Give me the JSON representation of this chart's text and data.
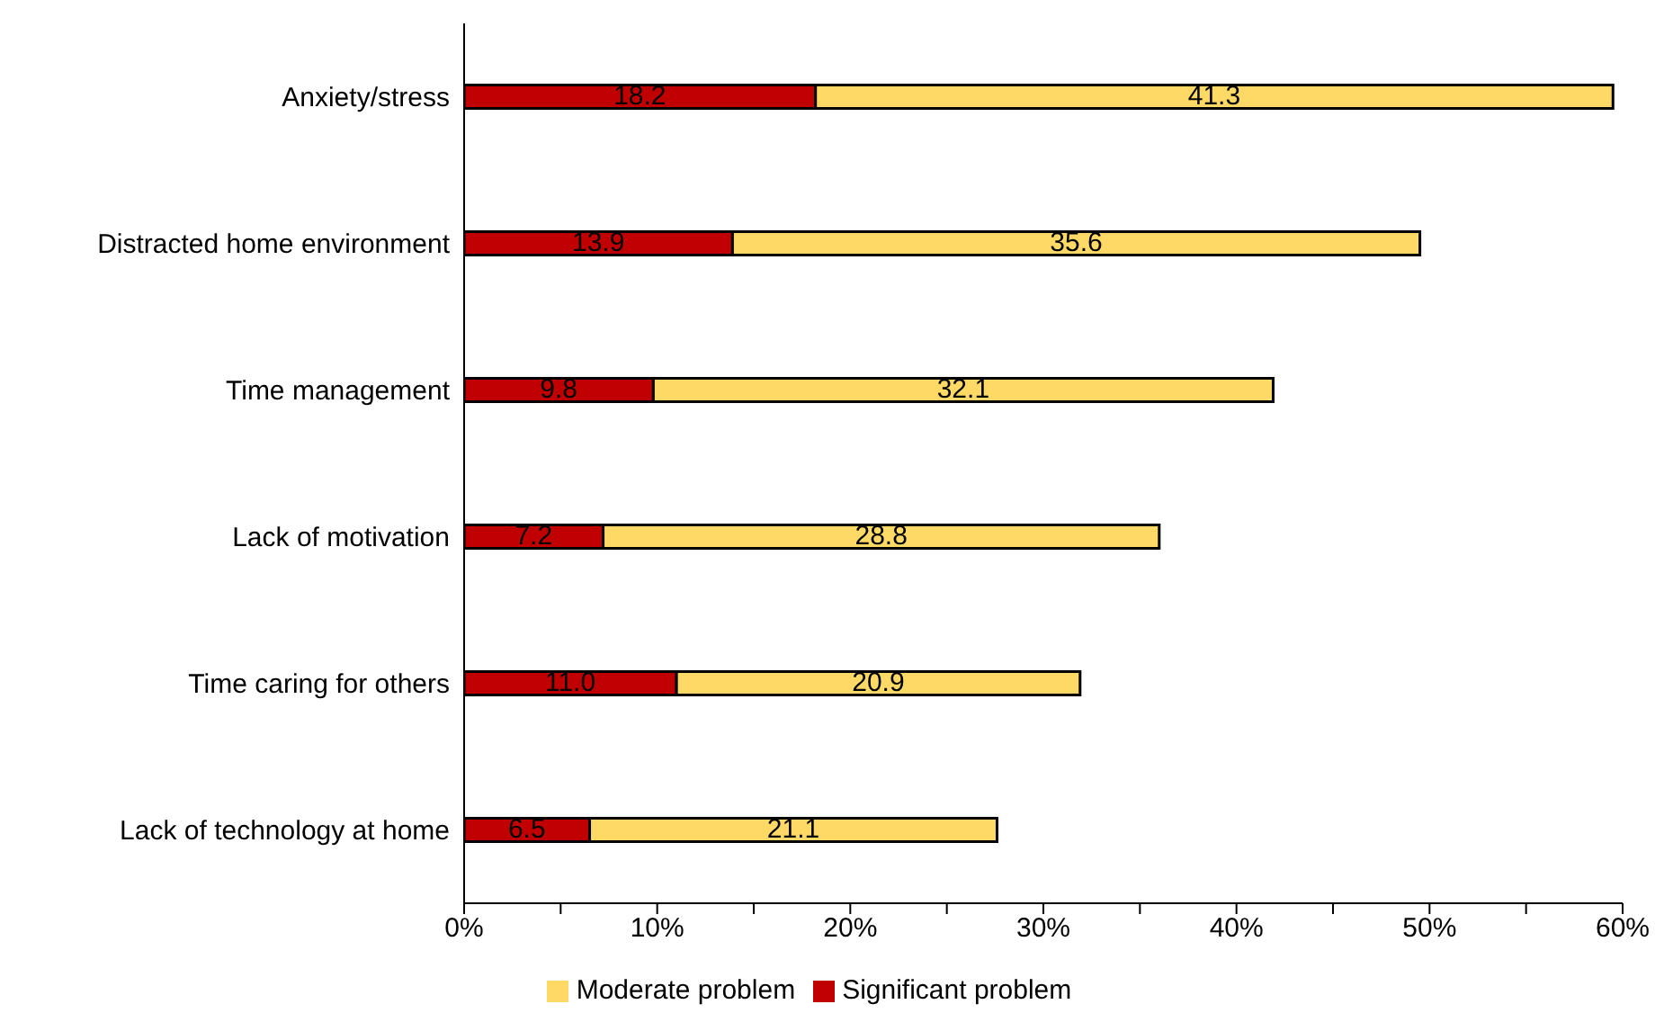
{
  "chart_data": {
    "type": "bar",
    "orientation": "horizontal",
    "stacked": true,
    "categories": [
      "Anxiety/stress",
      "Distracted home environment",
      "Time management",
      "Lack of motivation",
      "Time caring for others",
      "Lack of technology at home"
    ],
    "series": [
      {
        "name": "Significant problem",
        "color": "#c00000",
        "values": [
          18.2,
          13.9,
          9.8,
          7.2,
          11.0,
          6.5
        ],
        "value_labels": [
          "18.2",
          "13.9",
          "9.8",
          "7.2",
          "11.0",
          "6.5"
        ]
      },
      {
        "name": "Moderate problem",
        "color": "#ffd966",
        "values": [
          41.3,
          35.6,
          32.1,
          28.8,
          20.9,
          21.1
        ],
        "value_labels": [
          "41.3",
          "35.6",
          "32.1",
          "28.8",
          "20.9",
          "21.1"
        ]
      }
    ],
    "xlim": [
      0,
      60
    ],
    "xticks": [
      {
        "value": 0,
        "label": "0%"
      },
      {
        "value": 5,
        "label": null
      },
      {
        "value": 10,
        "label": "10%"
      },
      {
        "value": 15,
        "label": null
      },
      {
        "value": 20,
        "label": "20%"
      },
      {
        "value": 25,
        "label": null
      },
      {
        "value": 30,
        "label": "30%"
      },
      {
        "value": 35,
        "label": null
      },
      {
        "value": 40,
        "label": "40%"
      },
      {
        "value": 45,
        "label": null
      },
      {
        "value": 50,
        "label": "50%"
      },
      {
        "value": 55,
        "label": null
      },
      {
        "value": 60,
        "label": "60%"
      }
    ],
    "legend": "bottom"
  }
}
